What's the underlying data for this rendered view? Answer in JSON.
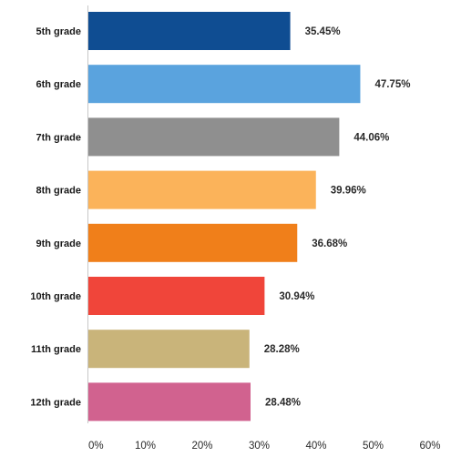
{
  "chart_data": {
    "type": "bar",
    "orientation": "horizontal",
    "categories": [
      "5th grade",
      "6th grade",
      "7th grade",
      "8th grade",
      "9th grade",
      "10th grade",
      "11th grade",
      "12th grade"
    ],
    "values": [
      35.45,
      47.75,
      44.06,
      39.96,
      36.68,
      30.94,
      28.28,
      28.48
    ],
    "value_labels": [
      "35.45%",
      "47.75%",
      "44.06%",
      "39.96%",
      "36.68%",
      "30.94%",
      "28.28%",
      "28.48%"
    ],
    "colors": [
      "#0f4d92",
      "#5aa3de",
      "#8f8f8f",
      "#fbb35a",
      "#f07f1a",
      "#f0453a",
      "#c9b47a",
      "#d1628f"
    ],
    "xlim": [
      0,
      60
    ],
    "xticks": [
      "0%",
      "10%",
      "20%",
      "30%",
      "40%",
      "50%",
      "60%"
    ],
    "grid": false
  }
}
